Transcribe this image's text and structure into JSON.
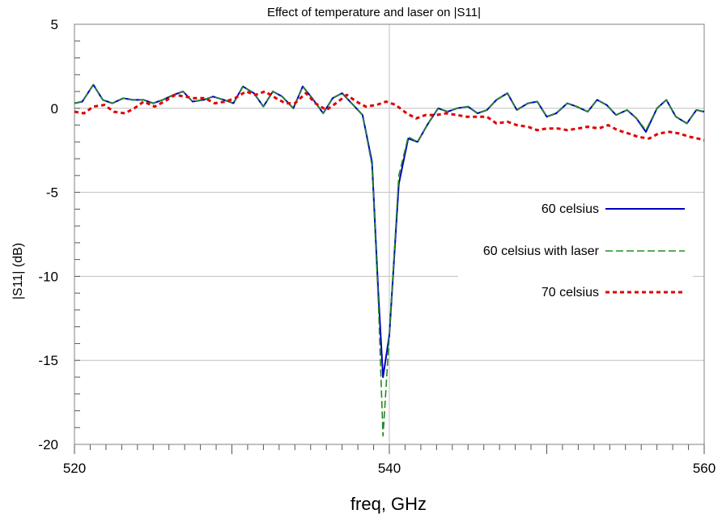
{
  "chart_data": {
    "type": "line",
    "title": "Effect of temperature and laser on |S11|",
    "xlabel": "freq, GHz",
    "ylabel": "|S11| (dB)",
    "xlim": [
      520,
      560
    ],
    "ylim": [
      -20,
      5
    ],
    "x_ticks": [
      "520",
      "540",
      "560"
    ],
    "y_ticks": [
      "5",
      "0",
      "-5",
      "-10",
      "-15",
      "-20"
    ],
    "grid": true,
    "legend_position": "right",
    "series": [
      {
        "name": "60 celsius",
        "color": "#0000c0",
        "style": "solid",
        "x": [
          520.0,
          520.5,
          521.2,
          521.8,
          522.4,
          523.1,
          523.7,
          524.4,
          525.0,
          525.6,
          526.3,
          526.9,
          527.5,
          528.2,
          528.8,
          529.5,
          530.1,
          530.7,
          531.4,
          532.0,
          532.6,
          533.2,
          533.9,
          534.5,
          535.1,
          535.8,
          536.4,
          537.0,
          537.7,
          538.3,
          538.9,
          539.3,
          539.6,
          540.0,
          540.6,
          541.2,
          541.8,
          542.4,
          543.1,
          543.7,
          544.3,
          545.0,
          545.6,
          546.2,
          546.8,
          547.5,
          548.1,
          548.8,
          549.4,
          550.0,
          550.6,
          551.3,
          551.9,
          552.6,
          553.2,
          553.8,
          554.4,
          555.1,
          555.7,
          556.3,
          557.0,
          557.6,
          558.2,
          558.9,
          559.5,
          560.0
        ],
        "y": [
          0.3,
          0.4,
          1.4,
          0.5,
          0.3,
          0.6,
          0.5,
          0.5,
          0.3,
          0.5,
          0.8,
          1.0,
          0.4,
          0.5,
          0.7,
          0.5,
          0.3,
          1.3,
          0.9,
          0.1,
          1.0,
          0.7,
          0.0,
          1.3,
          0.6,
          -0.3,
          0.6,
          0.9,
          0.2,
          -0.4,
          -3.2,
          -11.0,
          -16.0,
          -13.5,
          -4.5,
          -1.8,
          -2.0,
          -1.0,
          0.0,
          -0.2,
          0.0,
          0.1,
          -0.3,
          -0.1,
          0.5,
          0.9,
          -0.1,
          0.3,
          0.4,
          -0.5,
          -0.3,
          0.3,
          0.1,
          -0.2,
          0.5,
          0.2,
          -0.4,
          -0.1,
          -0.6,
          -1.4,
          0.0,
          0.5,
          -0.5,
          -0.9,
          -0.1,
          -0.2
        ]
      },
      {
        "name": "60 celsius with laser",
        "color": "#228b22",
        "style": "dashed",
        "x": [
          520.0,
          520.5,
          521.2,
          521.8,
          522.4,
          523.1,
          523.7,
          524.4,
          525.0,
          525.6,
          526.3,
          526.9,
          527.5,
          528.2,
          528.8,
          529.5,
          530.1,
          530.7,
          531.4,
          532.0,
          532.6,
          533.2,
          533.9,
          534.5,
          535.1,
          535.8,
          536.4,
          537.0,
          537.7,
          538.3,
          538.9,
          539.3,
          539.6,
          540.0,
          540.6,
          541.2,
          541.8,
          542.4,
          543.1,
          543.7,
          544.3,
          545.0,
          545.6,
          546.2,
          546.8,
          547.5,
          548.1,
          548.8,
          549.4,
          550.0,
          550.6,
          551.3,
          551.9,
          552.6,
          553.2,
          553.8,
          554.4,
          555.1,
          555.7,
          556.3,
          557.0,
          557.6,
          558.2,
          558.9,
          559.5,
          560.0
        ],
        "y": [
          0.3,
          0.4,
          1.4,
          0.5,
          0.3,
          0.6,
          0.5,
          0.5,
          0.3,
          0.5,
          0.8,
          1.0,
          0.4,
          0.5,
          0.7,
          0.5,
          0.3,
          1.3,
          0.9,
          0.1,
          1.0,
          0.7,
          0.0,
          1.3,
          0.6,
          -0.3,
          0.6,
          0.9,
          0.2,
          -0.4,
          -3.4,
          -11.5,
          -19.5,
          -13.5,
          -4.0,
          -1.7,
          -2.0,
          -1.0,
          0.0,
          -0.2,
          0.0,
          0.1,
          -0.3,
          -0.1,
          0.5,
          0.9,
          -0.1,
          0.3,
          0.4,
          -0.5,
          -0.3,
          0.3,
          0.1,
          -0.2,
          0.5,
          0.2,
          -0.4,
          -0.1,
          -0.6,
          -1.3,
          0.0,
          0.5,
          -0.5,
          -0.9,
          -0.1,
          -0.2
        ]
      },
      {
        "name": "70 celsius",
        "color": "#e00000",
        "style": "dotted",
        "x": [
          520.0,
          520.6,
          521.2,
          521.9,
          522.5,
          523.2,
          523.8,
          524.4,
          525.1,
          525.7,
          526.4,
          527.0,
          527.6,
          528.3,
          528.9,
          529.6,
          530.2,
          530.9,
          531.5,
          532.1,
          532.8,
          533.4,
          534.0,
          534.7,
          535.3,
          536.0,
          536.6,
          537.3,
          537.9,
          538.5,
          539.2,
          539.8,
          540.4,
          541.1,
          541.7,
          542.3,
          543.0,
          543.6,
          544.3,
          544.9,
          545.5,
          546.2,
          546.8,
          547.5,
          548.1,
          548.8,
          549.4,
          550.0,
          550.7,
          551.3,
          552.0,
          552.6,
          553.3,
          553.9,
          554.5,
          555.2,
          555.8,
          556.5,
          557.1,
          557.8,
          558.4,
          559.1,
          559.6,
          560.0
        ],
        "y": [
          -0.2,
          -0.3,
          0.1,
          0.2,
          -0.2,
          -0.3,
          0.0,
          0.4,
          0.1,
          0.4,
          0.8,
          0.7,
          0.6,
          0.6,
          0.3,
          0.4,
          0.6,
          1.0,
          0.8,
          1.0,
          0.6,
          0.3,
          0.3,
          0.9,
          0.3,
          -0.1,
          0.3,
          0.8,
          0.4,
          0.1,
          0.2,
          0.4,
          0.2,
          -0.3,
          -0.6,
          -0.4,
          -0.4,
          -0.3,
          -0.4,
          -0.5,
          -0.5,
          -0.5,
          -0.9,
          -0.8,
          -1.0,
          -1.1,
          -1.3,
          -1.2,
          -1.2,
          -1.3,
          -1.2,
          -1.1,
          -1.2,
          -1.0,
          -1.3,
          -1.5,
          -1.7,
          -1.8,
          -1.5,
          -1.4,
          -1.5,
          -1.7,
          -1.8,
          -1.9
        ]
      }
    ]
  }
}
